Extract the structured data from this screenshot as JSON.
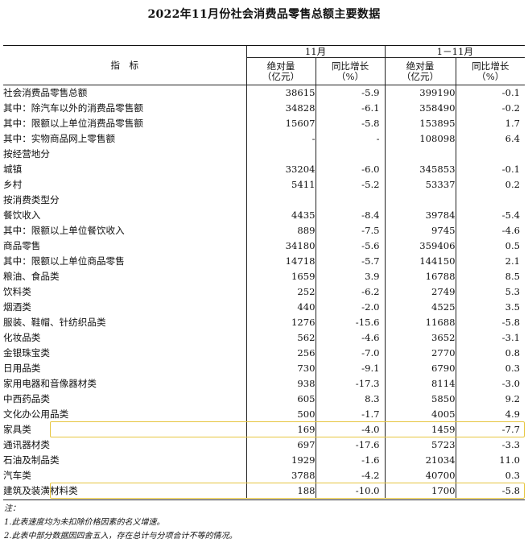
{
  "title": "2022年11月份社会消费品零售总额主要数据",
  "header": {
    "indicator": "指　标",
    "period1": "11月",
    "period2": "1－11月",
    "abs_line1": "绝对量",
    "abs_line2": "（亿元）",
    "yoy_line1": "同比增长",
    "yoy_line2": "（%）"
  },
  "rows": [
    {
      "label": "社会消费品零售总额",
      "indent": 0,
      "v1": "38615",
      "p1": "-5.9",
      "v2": "399190",
      "p2": "-0.1"
    },
    {
      "label": "其中：除汽车以外的消费品零售额",
      "indent": 1,
      "v1": "34828",
      "p1": "-6.1",
      "v2": "358490",
      "p2": "-0.2"
    },
    {
      "label": "其中：限额以上单位消费品零售额",
      "indent": 1,
      "v1": "15607",
      "p1": "-5.8",
      "v2": "153895",
      "p2": "1.7"
    },
    {
      "label": "其中：实物商品网上零售额",
      "indent": 1,
      "v1": "-",
      "p1": "-",
      "v2": "108098",
      "p2": "6.4"
    },
    {
      "label": "按经营地分",
      "indent": 0,
      "v1": "",
      "p1": "",
      "v2": "",
      "p2": ""
    },
    {
      "label": "城镇",
      "indent": 1,
      "v1": "33204",
      "p1": "-6.0",
      "v2": "345853",
      "p2": "-0.1"
    },
    {
      "label": "乡村",
      "indent": 1,
      "v1": "5411",
      "p1": "-5.2",
      "v2": "53337",
      "p2": "0.2"
    },
    {
      "label": "按消费类型分",
      "indent": 0,
      "v1": "",
      "p1": "",
      "v2": "",
      "p2": ""
    },
    {
      "label": "餐饮收入",
      "indent": 1,
      "v1": "4435",
      "p1": "-8.4",
      "v2": "39784",
      "p2": "-5.4"
    },
    {
      "label": "其中：限额以上单位餐饮收入",
      "indent": 2,
      "v1": "889",
      "p1": "-7.5",
      "v2": "9745",
      "p2": "-4.6"
    },
    {
      "label": "商品零售",
      "indent": 1,
      "v1": "34180",
      "p1": "-5.6",
      "v2": "359406",
      "p2": "0.5"
    },
    {
      "label": "其中：限额以上单位商品零售",
      "indent": 2,
      "v1": "14718",
      "p1": "-5.7",
      "v2": "144150",
      "p2": "2.1"
    },
    {
      "label": "粮油、食品类",
      "indent": 3,
      "v1": "1659",
      "p1": "3.9",
      "v2": "16788",
      "p2": "8.5"
    },
    {
      "label": "饮料类",
      "indent": 3,
      "v1": "252",
      "p1": "-6.2",
      "v2": "2749",
      "p2": "5.3"
    },
    {
      "label": "烟酒类",
      "indent": 3,
      "v1": "440",
      "p1": "-2.0",
      "v2": "4525",
      "p2": "3.5"
    },
    {
      "label": "服装、鞋帽、针纺织品类",
      "indent": 3,
      "v1": "1276",
      "p1": "-15.6",
      "v2": "11688",
      "p2": "-5.8"
    },
    {
      "label": "化妆品类",
      "indent": 3,
      "v1": "562",
      "p1": "-4.6",
      "v2": "3652",
      "p2": "-3.1"
    },
    {
      "label": "金银珠宝类",
      "indent": 3,
      "v1": "256",
      "p1": "-7.0",
      "v2": "2770",
      "p2": "0.8"
    },
    {
      "label": "日用品类",
      "indent": 3,
      "v1": "730",
      "p1": "-9.1",
      "v2": "6790",
      "p2": "0.3"
    },
    {
      "label": "家用电器和音像器材类",
      "indent": 3,
      "v1": "938",
      "p1": "-17.3",
      "v2": "8114",
      "p2": "-3.0"
    },
    {
      "label": "中西药品类",
      "indent": 3,
      "v1": "605",
      "p1": "8.3",
      "v2": "5850",
      "p2": "9.2"
    },
    {
      "label": "文化办公用品类",
      "indent": 3,
      "v1": "500",
      "p1": "-1.7",
      "v2": "4005",
      "p2": "4.9"
    },
    {
      "label": "家具类",
      "indent": 3,
      "v1": "169",
      "p1": "-4.0",
      "v2": "1459",
      "p2": "-7.7",
      "highlight": true
    },
    {
      "label": "通讯器材类",
      "indent": 3,
      "v1": "697",
      "p1": "-17.6",
      "v2": "5723",
      "p2": "-3.3"
    },
    {
      "label": "石油及制品类",
      "indent": 3,
      "v1": "1929",
      "p1": "-1.6",
      "v2": "21034",
      "p2": "11.0"
    },
    {
      "label": "汽车类",
      "indent": 3,
      "v1": "3788",
      "p1": "-4.2",
      "v2": "40700",
      "p2": "0.3"
    },
    {
      "label": "建筑及装潢材料类",
      "indent": 3,
      "v1": "188",
      "p1": "-10.0",
      "v2": "1700",
      "p2": "-5.8",
      "highlight": true
    }
  ],
  "notes": {
    "label": "注：",
    "line1": "1.此表速度均为未扣除价格因素的名义增速。",
    "line2": "2.此表中部分数据因四舍五入，存在总计与分项合计不等的情况。"
  },
  "highlight_color": "#e6c640"
}
